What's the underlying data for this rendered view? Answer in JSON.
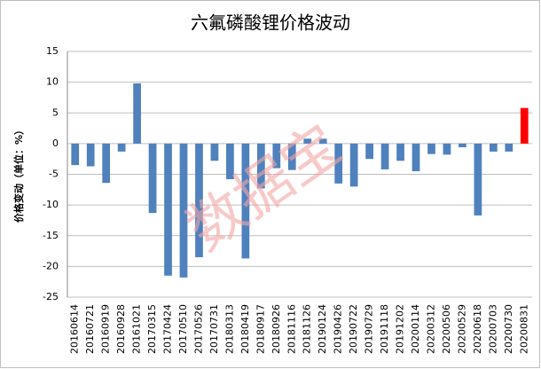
{
  "chart_data": {
    "type": "bar",
    "title": "六氟磷酸锂价格波动",
    "y_label": "价格变动（单位：%）",
    "watermark": "数据宝",
    "categories": [
      "20160614",
      "20160721",
      "20160919",
      "20160928",
      "20161021",
      "20170315",
      "20170424",
      "20170510",
      "20170526",
      "20170731",
      "20180313",
      "20180419",
      "20180917",
      "20180926",
      "20181116",
      "20181126",
      "20190124",
      "20190426",
      "20190722",
      "20190729",
      "20191118",
      "20191202",
      "20200114",
      "20200312",
      "20200506",
      "20200529",
      "20200618",
      "20200703",
      "20200730",
      "20200831"
    ],
    "values": [
      -3.5,
      -3.7,
      -6.4,
      -1.3,
      9.8,
      -11.3,
      -21.5,
      -21.8,
      -18.5,
      -2.8,
      -5.8,
      -18.7,
      -7.3,
      -4.0,
      -4.3,
      0.8,
      0.8,
      -6.5,
      -7.0,
      -2.5,
      -4.2,
      -2.8,
      -4.5,
      -1.7,
      -1.8,
      -0.6,
      -11.7,
      -1.3,
      -1.3,
      5.8
    ],
    "colors": [
      "#4f81bd",
      "#4f81bd",
      "#4f81bd",
      "#4f81bd",
      "#4f81bd",
      "#4f81bd",
      "#4f81bd",
      "#4f81bd",
      "#4f81bd",
      "#4f81bd",
      "#4f81bd",
      "#4f81bd",
      "#4f81bd",
      "#4f81bd",
      "#4f81bd",
      "#4f81bd",
      "#4f81bd",
      "#4f81bd",
      "#4f81bd",
      "#4f81bd",
      "#4f81bd",
      "#4f81bd",
      "#4f81bd",
      "#4f81bd",
      "#4f81bd",
      "#4f81bd",
      "#4f81bd",
      "#4f81bd",
      "#4f81bd",
      "#ff0000"
    ],
    "ylim": [
      -25,
      15
    ],
    "yticks": [
      -25,
      -20,
      -15,
      -10,
      -5,
      0,
      5,
      10,
      15
    ],
    "grid": true
  }
}
